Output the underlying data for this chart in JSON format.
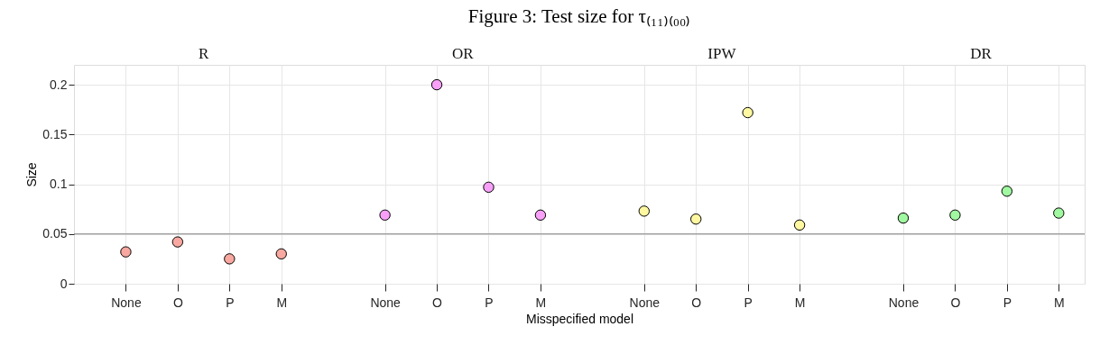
{
  "chart_data": {
    "type": "scatter",
    "title": "Figure 3: Test size for τ₍₁₁₎₍₀₀₎",
    "xlabel": "Misspecified model",
    "ylabel": "Size",
    "categories": [
      "None",
      "O",
      "P",
      "M",
      "None",
      "O",
      "P",
      "M",
      "None",
      "O",
      "P",
      "M",
      "None",
      "O",
      "P",
      "M"
    ],
    "annotations": [
      "R",
      "OR",
      "IPW",
      "DR"
    ],
    "series": [
      {
        "color": "#f8a8a0",
        "values": [
          0.032,
          0.042,
          0.025,
          0.03,
          null,
          null,
          null,
          null,
          null,
          null,
          null,
          null,
          null,
          null,
          null,
          null
        ]
      },
      {
        "color": "#f8a0f8",
        "values": [
          null,
          null,
          null,
          null,
          0.069,
          0.2,
          0.097,
          0.069,
          null,
          null,
          null,
          null,
          null,
          null,
          null,
          null
        ]
      },
      {
        "color": "#fff8a0",
        "values": [
          null,
          null,
          null,
          null,
          null,
          null,
          null,
          null,
          0.073,
          0.065,
          0.172,
          0.059,
          null,
          null,
          null,
          null
        ]
      },
      {
        "color": "#a0f8a0",
        "values": [
          null,
          null,
          null,
          null,
          null,
          null,
          null,
          null,
          null,
          null,
          null,
          null,
          0.066,
          0.069,
          0.093,
          0.071
        ]
      }
    ],
    "ylim": [
      0,
      0.22
    ],
    "yticks": [
      0,
      0.05,
      0.1,
      0.15,
      0.2
    ],
    "ref_lines": [
      {
        "axis": "y",
        "value": 0.05,
        "color": "#808080"
      }
    ],
    "grid": true,
    "marker": "circle"
  }
}
